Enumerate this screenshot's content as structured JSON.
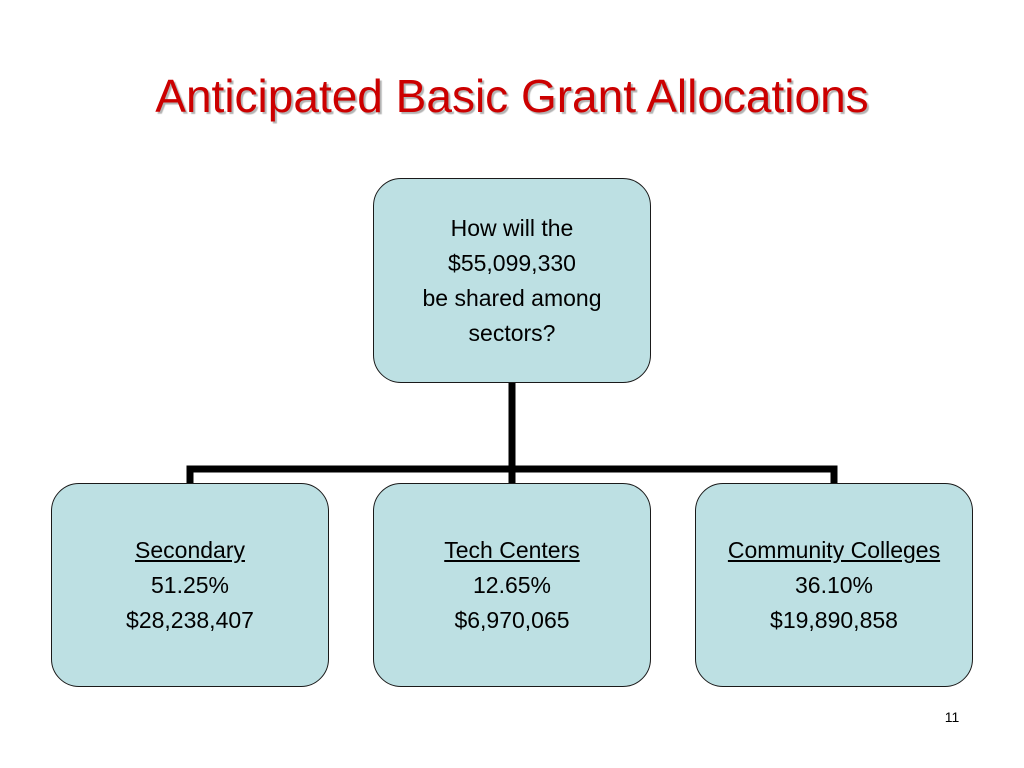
{
  "slide": {
    "title": "Anticipated Basic Grant Allocations",
    "page_number": "11"
  },
  "root": {
    "lines": [
      "How will the",
      "$55,099,330",
      "be shared among",
      "sectors?"
    ]
  },
  "children": [
    {
      "name": "Secondary",
      "percent": "51.25%",
      "amount": "$28,238,407"
    },
    {
      "name": "Tech Centers",
      "percent": "12.65%",
      "amount": "$6,970,065"
    },
    {
      "name": "Community Colleges",
      "percent": "36.10%",
      "amount": "$19,890,858"
    }
  ],
  "colors": {
    "title": "#cc0000",
    "node_fill": "#bde0e3",
    "node_border": "#1a1a1a",
    "connector": "#000000"
  }
}
